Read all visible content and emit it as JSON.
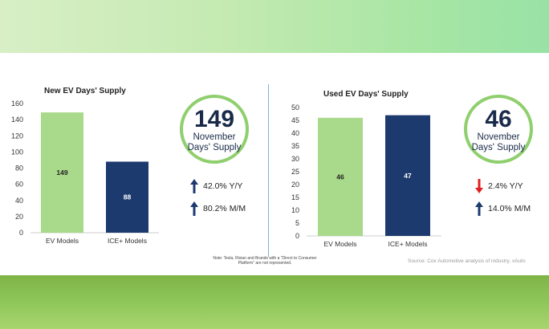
{
  "chart_data": [
    {
      "type": "bar",
      "title": "New EV Days' Supply",
      "categories": [
        "EV Models",
        "ICE+ Models"
      ],
      "values": [
        149,
        88
      ],
      "data_labels": [
        "149",
        "88"
      ],
      "colors": [
        "#a9d98a",
        "#1c3a6e"
      ],
      "ylim": [
        0,
        160
      ],
      "yticks": [
        0,
        20,
        40,
        60,
        80,
        100,
        120,
        140,
        160
      ],
      "xlabel": "",
      "ylabel": "",
      "grid": false
    },
    {
      "type": "bar",
      "title": "Used EV Days' Supply",
      "categories": [
        "EV Models",
        "ICE+ Models"
      ],
      "values": [
        46,
        47
      ],
      "data_labels": [
        "46",
        "47"
      ],
      "colors": [
        "#a9d98a",
        "#1c3a6e"
      ],
      "ylim": [
        0,
        50
      ],
      "yticks": [
        0,
        5,
        10,
        15,
        20,
        25,
        30,
        35,
        40,
        45,
        50
      ],
      "xlabel": "",
      "ylabel": "",
      "grid": false
    }
  ],
  "callouts": {
    "new": {
      "value": "149",
      "label_line1": "November",
      "label_line2": "Days' Supply",
      "stats": [
        {
          "text": "42.0% Y/Y",
          "direction": "up",
          "color": "#1c3a6e"
        },
        {
          "text": "80.2% M/M",
          "direction": "up",
          "color": "#1c3a6e"
        }
      ]
    },
    "used": {
      "value": "46",
      "label_line1": "November",
      "label_line2": "Days' Supply",
      "stats": [
        {
          "text": "2.4% Y/Y",
          "direction": "down",
          "color": "#e02020"
        },
        {
          "text": "14.0% M/M",
          "direction": "up",
          "color": "#1c3a6e"
        }
      ]
    }
  },
  "note": "Note: Tesla, Rivian and Brands with a \"Direct to Consumer Platform\" are not represented.",
  "source": "Source: Cox Automotive analysis of industry, vAuto"
}
